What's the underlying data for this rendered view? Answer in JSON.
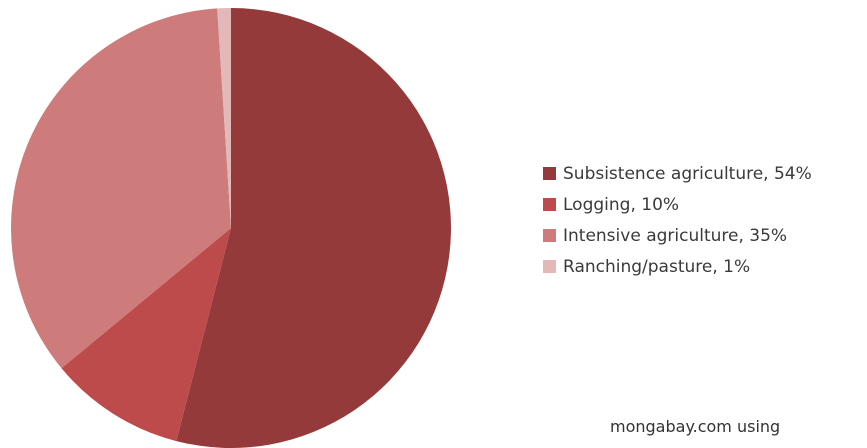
{
  "chart_data": {
    "type": "pie",
    "start_angle_deg": 0,
    "direction": "clockwise",
    "legend_position": "right",
    "slices": [
      {
        "label": "Subsistence agriculture, 54%",
        "value": 54,
        "color": "#943a3a"
      },
      {
        "label": "Logging, 10%",
        "value": 10,
        "color": "#bd4b4b"
      },
      {
        "label": "Intensive agriculture, 35%",
        "value": 35,
        "color": "#cd7b7b"
      },
      {
        "label": "Ranching/pasture, 1%",
        "value": 1,
        "color": "#e3b8b8"
      }
    ]
  },
  "source": {
    "line1": "mongabay.com using"
  }
}
